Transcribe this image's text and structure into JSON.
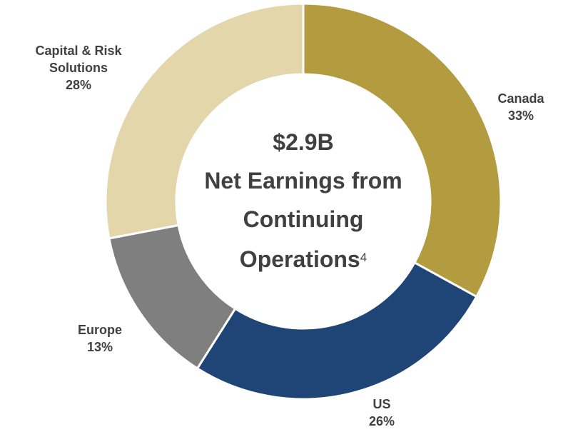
{
  "chart_data": {
    "type": "donut",
    "categories": [
      "Canada",
      "US",
      "Europe",
      "Capital & Risk Solutions"
    ],
    "values": [
      33,
      26,
      13,
      28
    ],
    "value_labels": [
      "33%",
      "26%",
      "13%",
      "28%"
    ],
    "colors": [
      "#b39b3f",
      "#1f4577",
      "#7f7f7f",
      "#e2d6aa"
    ],
    "center_text": {
      "amount": "$2.9B",
      "label": "Net Earnings from Continuing Operations",
      "footnote": "4"
    }
  }
}
